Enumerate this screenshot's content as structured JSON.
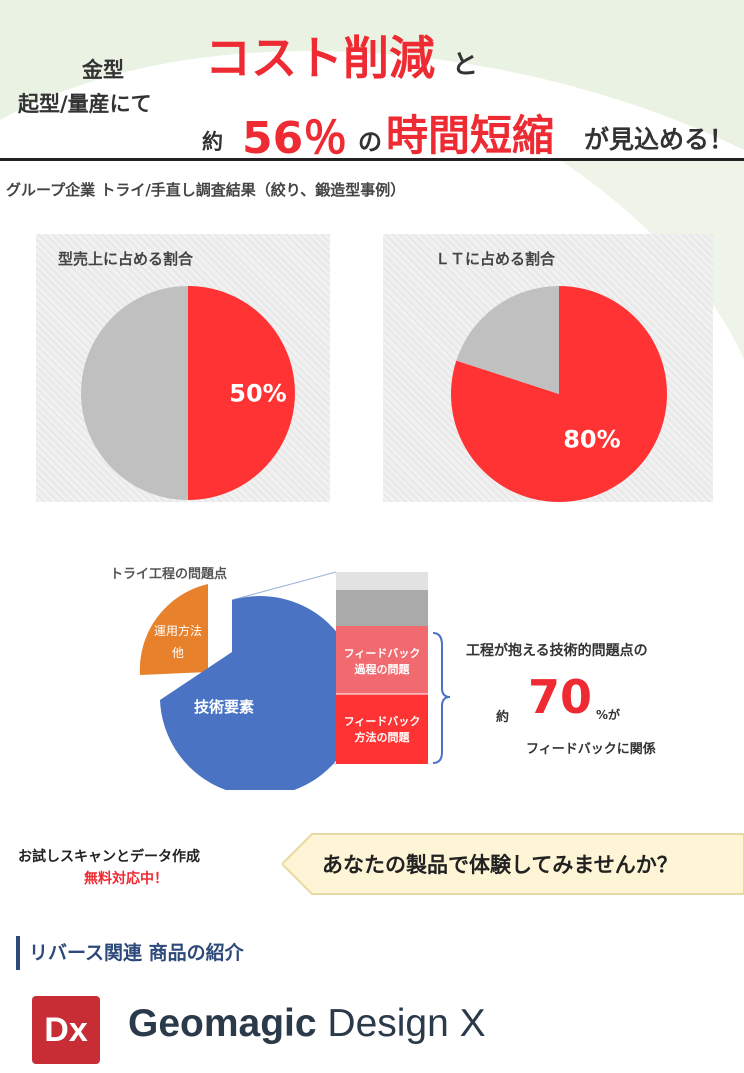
{
  "header": {
    "line1": "金型",
    "line2": "起型/量産にて",
    "cost": "コスト削減",
    "to": "と",
    "approx": "約",
    "pct": "56％",
    "no": "の",
    "time": "時間短縮",
    "suffix": "が見込める！"
  },
  "survey_title": "グループ企業 トライ/手直し調査結果（絞り、鍛造型事例）",
  "colors": {
    "red": "#ff3333",
    "gray": "#c0c0c0",
    "blue": "#4a73c4",
    "orange": "#e8812c",
    "accent_red": "#ee2a33",
    "navy": "#2e4a7a"
  },
  "chart_data": [
    {
      "type": "pie",
      "title": "型売上に占める割合",
      "slices": [
        {
          "value": 50,
          "label": "50%",
          "color": "#ff3333"
        },
        {
          "value": 50,
          "label": "",
          "color": "#c0c0c0"
        }
      ]
    },
    {
      "type": "pie",
      "title": "ＬＴに占める割合",
      "slices": [
        {
          "value": 80,
          "label": "80%",
          "color": "#ff3333"
        },
        {
          "value": 20,
          "label": "",
          "color": "#c0c0c0"
        }
      ]
    }
  ],
  "issues": {
    "title": "トライ工程の問題点",
    "slice_small_1": "運用方法",
    "slice_small_2": "他",
    "slice_big": "技術要素",
    "bar_top_1": "フィードバック",
    "bar_top_2": "過程の問題",
    "bar_bottom_1": "フィードバック",
    "bar_bottom_2": "方法の問題",
    "right_line1": "工程が抱える技術的問題点の",
    "right_approx": "約",
    "right_value": "70",
    "right_pct": "%が",
    "right_line3": "フィードバックに関係"
  },
  "promo": {
    "left1": "お試しスキャンとデータ作成",
    "left2": "無料対応中！",
    "main": "あなたの製品で体験してみませんか？"
  },
  "section_title": "リバース関連 商品の紹介",
  "product": {
    "logo": "Dx",
    "name_bold": "Geomagic",
    "name_rest": " Design X"
  }
}
